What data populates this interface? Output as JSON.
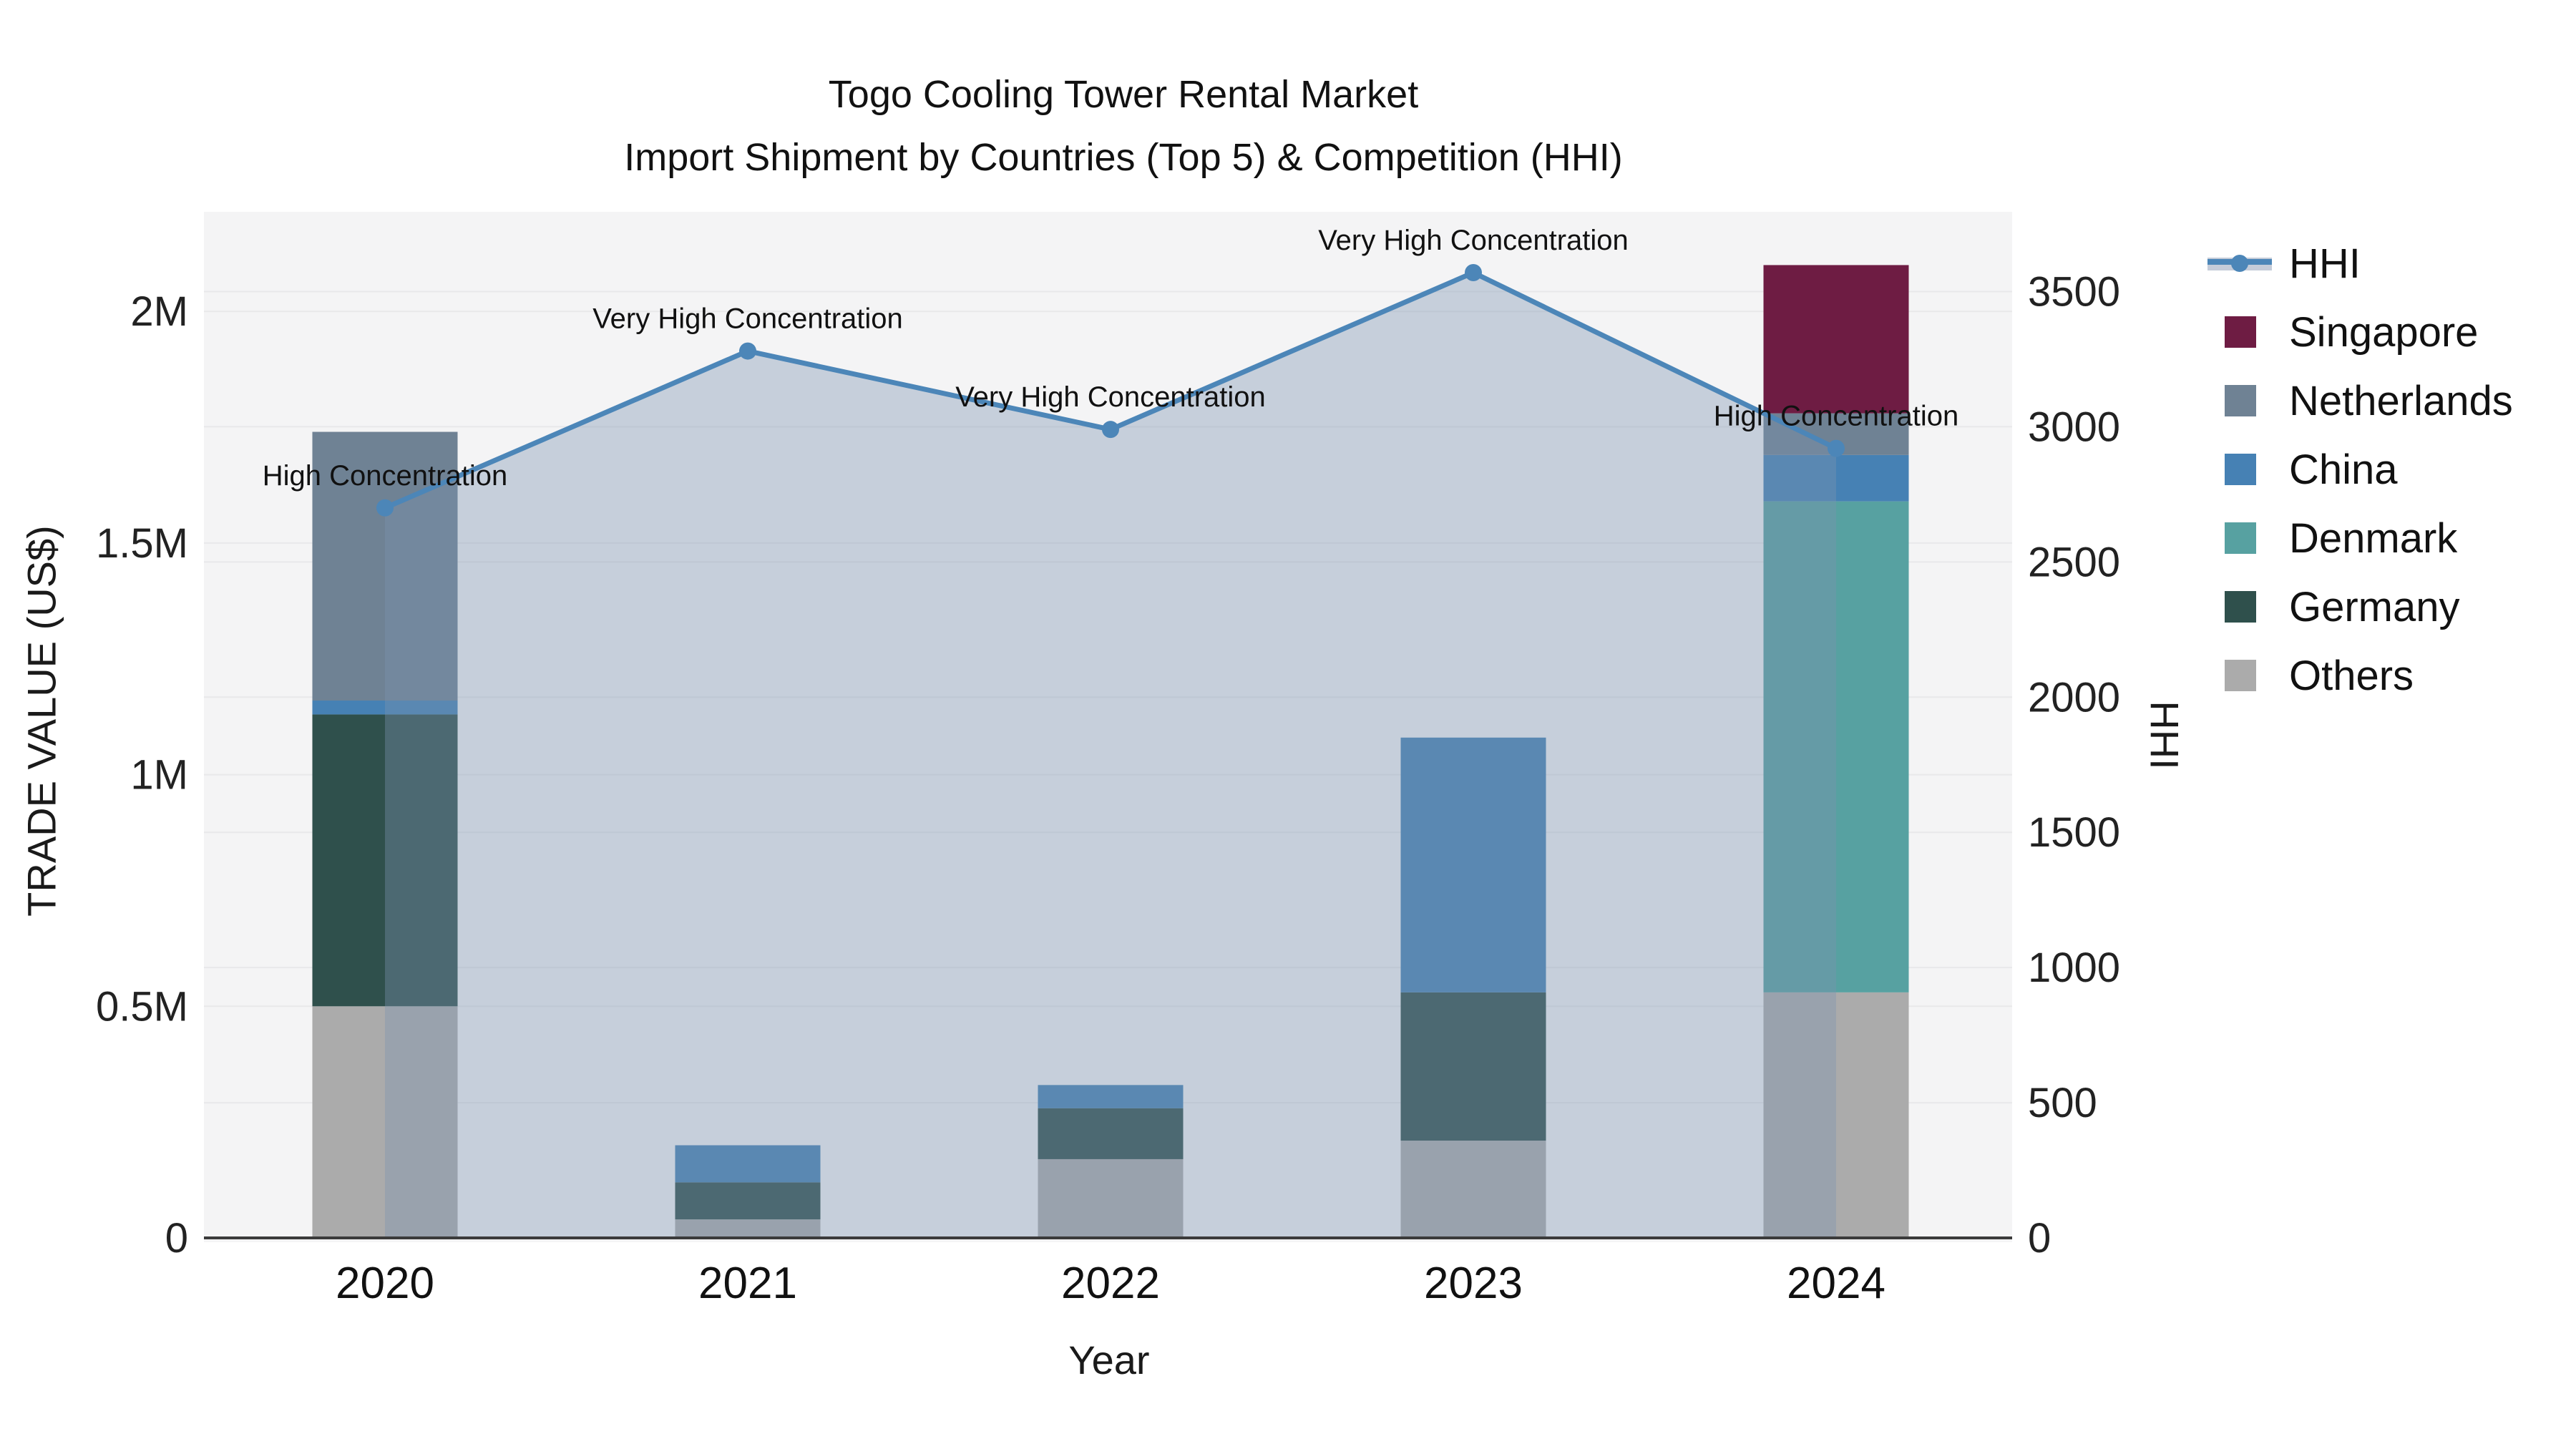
{
  "title": {
    "line1": "Togo Cooling Tower Rental Market",
    "line2": "Import Shipment by Countries (Top 5) & Competition (HHI)"
  },
  "axes": {
    "x_title": "Year",
    "y_left_title": "TRADE VALUE (US$)",
    "y_right_title": "HHI",
    "x_ticks": [
      "2020",
      "2021",
      "2022",
      "2023",
      "2024"
    ],
    "y_left_ticks": [
      {
        "label": "0",
        "value": 0
      },
      {
        "label": "0.5M",
        "value": 500000
      },
      {
        "label": "1M",
        "value": 1000000
      },
      {
        "label": "1.5M",
        "value": 1500000
      },
      {
        "label": "2M",
        "value": 2000000
      }
    ],
    "y_right_ticks": [
      {
        "label": "0",
        "value": 0
      },
      {
        "label": "500",
        "value": 500
      },
      {
        "label": "1000",
        "value": 1000
      },
      {
        "label": "1500",
        "value": 1500
      },
      {
        "label": "2000",
        "value": 2000
      },
      {
        "label": "2500",
        "value": 2500
      },
      {
        "label": "3000",
        "value": 3000
      },
      {
        "label": "3500",
        "value": 3500
      }
    ]
  },
  "legend": [
    {
      "label": "HHI",
      "type": "line",
      "color": "#4C86B8",
      "band": "#C5CCD9"
    },
    {
      "label": "Singapore",
      "type": "swatch",
      "color": "#6E1C43"
    },
    {
      "label": "Netherlands",
      "type": "swatch",
      "color": "#6F8294"
    },
    {
      "label": "China",
      "type": "swatch",
      "color": "#4681B4"
    },
    {
      "label": "Denmark",
      "type": "swatch",
      "color": "#57A1A1"
    },
    {
      "label": "Germany",
      "type": "swatch",
      "color": "#2F504C"
    },
    {
      "label": "Others",
      "type": "swatch",
      "color": "#ABABAB"
    }
  ],
  "chart_data": {
    "type": "bar+line",
    "categories": [
      "2020",
      "2021",
      "2022",
      "2023",
      "2024"
    ],
    "bar_value_unit": "US$",
    "stack_order_bottom_to_top": [
      "Others",
      "Germany",
      "Denmark",
      "China",
      "Netherlands",
      "Singapore"
    ],
    "series": [
      {
        "name": "Others",
        "color": "#ABABAB",
        "values": [
          500000,
          40000,
          170000,
          210000,
          530000
        ]
      },
      {
        "name": "Germany",
        "color": "#2F504C",
        "values": [
          630000,
          80000,
          110000,
          320000,
          0
        ]
      },
      {
        "name": "Denmark",
        "color": "#57A1A1",
        "values": [
          0,
          0,
          0,
          0,
          1060000
        ]
      },
      {
        "name": "China",
        "color": "#4681B4",
        "values": [
          30000,
          80000,
          50000,
          550000,
          100000
        ]
      },
      {
        "name": "Netherlands",
        "color": "#6F8294",
        "values": [
          580000,
          0,
          0,
          0,
          90000
        ]
      },
      {
        "name": "Singapore",
        "color": "#6E1C43",
        "values": [
          0,
          0,
          0,
          0,
          320000
        ]
      }
    ],
    "bar_totals": [
      1740000,
      200000,
      330000,
      1080000,
      2100000
    ],
    "line": {
      "name": "HHI",
      "color": "#4C86B8",
      "axis": "right",
      "values": [
        2700,
        3280,
        2990,
        3570,
        2920
      ]
    },
    "annotations": [
      "High Concentration",
      "Very High Concentration",
      "Very High Concentration",
      "Very High Concentration",
      "High Concentration"
    ],
    "y_left_range": [
      0,
      2215000
    ],
    "y_right_range": [
      0,
      3795
    ],
    "area_fill": "rgba(124,148,177,0.38)",
    "plot_bg": "#F4F4F5",
    "grid_color": "#E8E8EA",
    "axis_line_color": "#3B3B3B",
    "tick_color": "#222222",
    "legend_position": "right",
    "grid_on": true
  }
}
